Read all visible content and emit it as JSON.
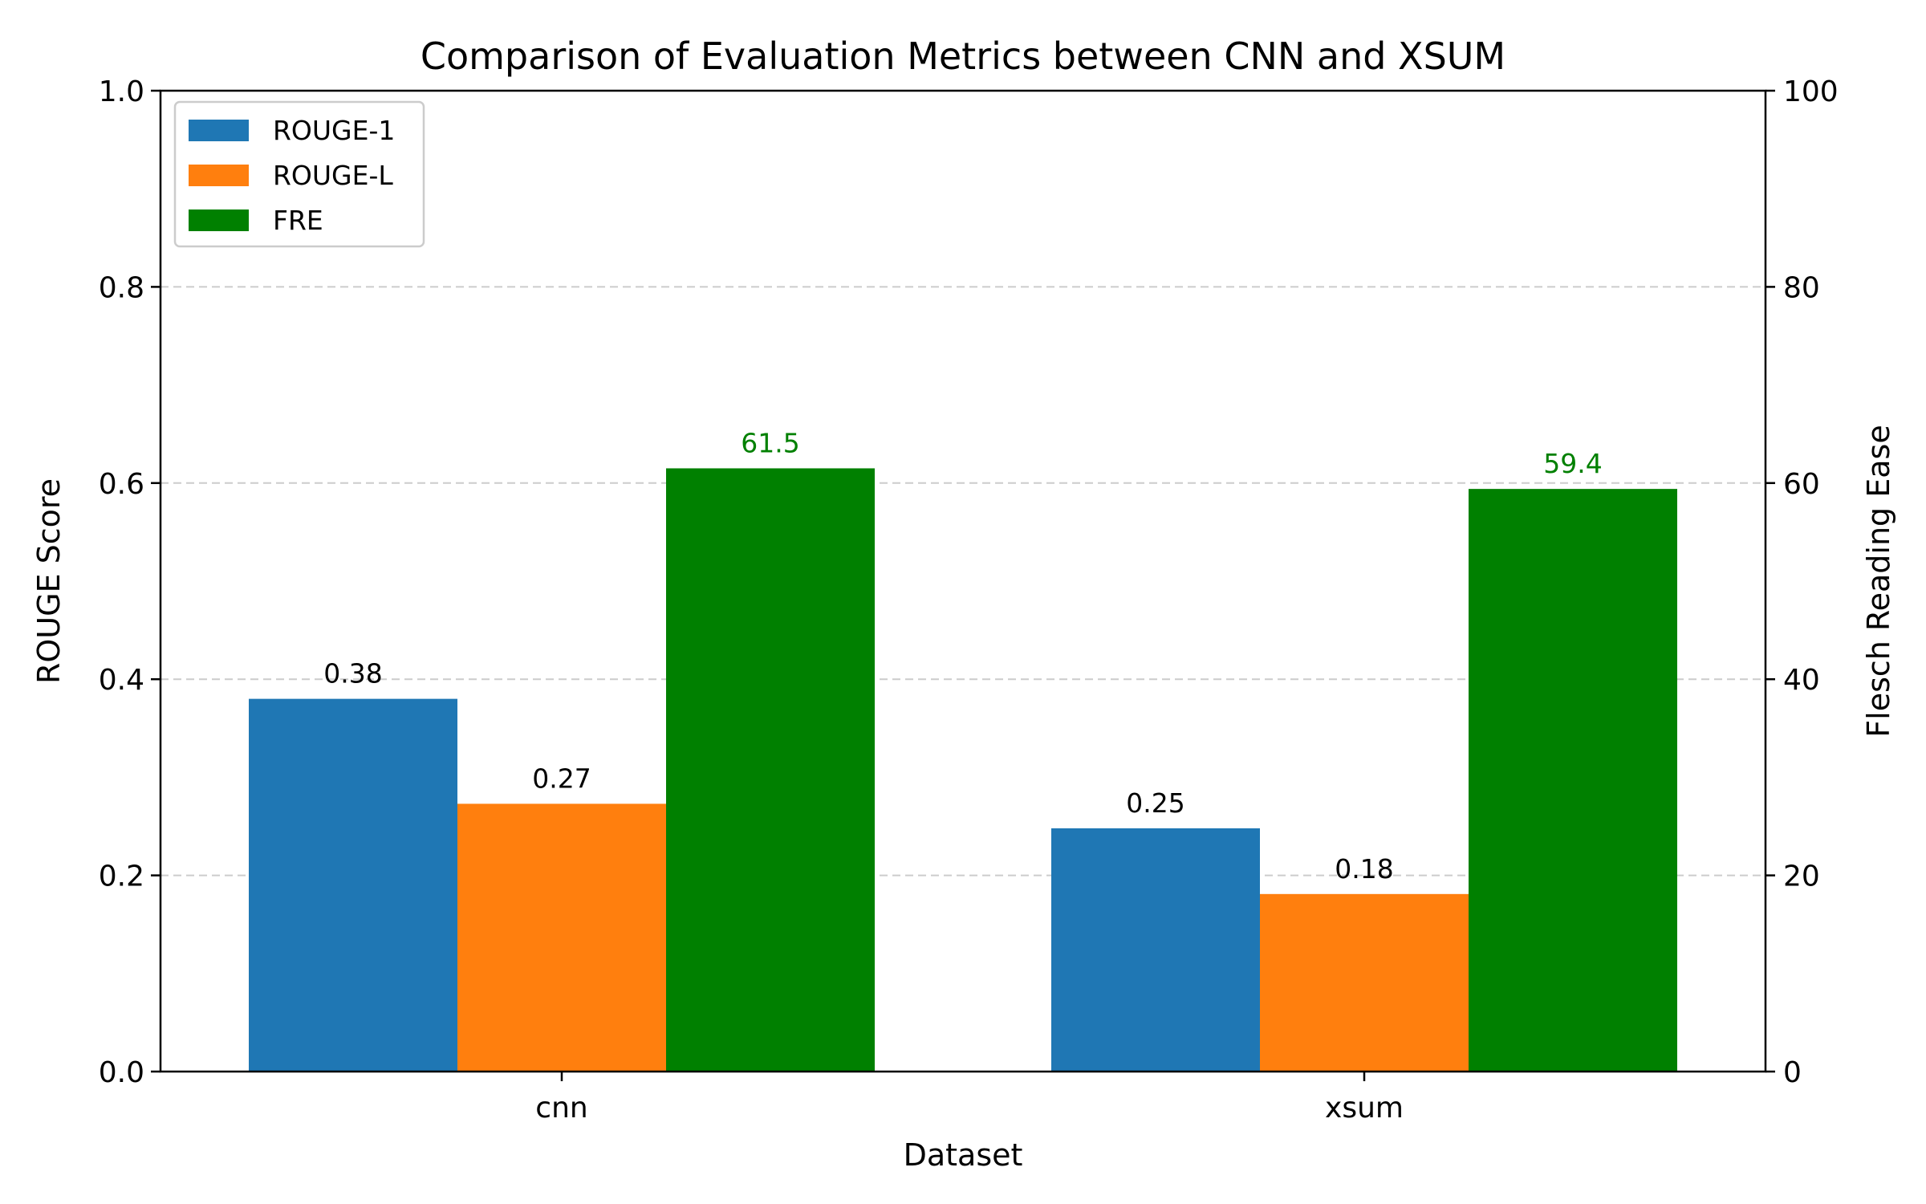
{
  "chart_data": {
    "type": "bar",
    "title": "Comparison of Evaluation Metrics between CNN and XSUM",
    "xlabel": "Dataset",
    "ylabel": "ROUGE Score",
    "y2label": "Flesch Reading Ease",
    "categories": [
      "cnn",
      "xsum"
    ],
    "ylim": [
      0,
      1.0
    ],
    "y2lim": [
      0,
      100
    ],
    "yticks": [
      "0.0",
      "0.2",
      "0.4",
      "0.6",
      "0.8",
      "1.0"
    ],
    "y2ticks": [
      "0",
      "20",
      "40",
      "60",
      "80",
      "100"
    ],
    "grid": "horizontal dashed",
    "legend_position": "top-left",
    "series": [
      {
        "name": "ROUGE-1",
        "axis": "left",
        "color": "#1f77b4",
        "values": [
          0.38,
          0.248
        ],
        "labels": [
          "0.38",
          "0.25"
        ],
        "label_color": "#000000"
      },
      {
        "name": "ROUGE-L",
        "axis": "left",
        "color": "#ff7f0e",
        "values": [
          0.273,
          0.181
        ],
        "labels": [
          "0.27",
          "0.18"
        ],
        "label_color": "#000000"
      },
      {
        "name": "FRE",
        "axis": "right",
        "color": "#008000",
        "values": [
          61.5,
          59.4
        ],
        "labels": [
          "61.5",
          "59.4"
        ],
        "label_color": "#008000"
      }
    ]
  }
}
